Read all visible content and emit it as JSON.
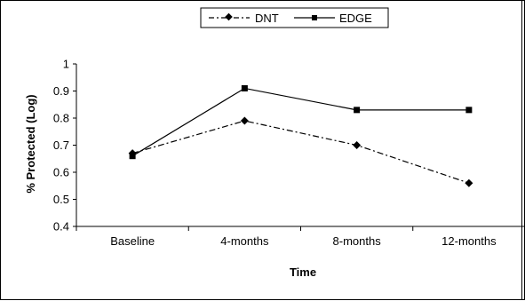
{
  "chart_data": {
    "type": "line",
    "title": "",
    "xlabel": "Time",
    "ylabel": "% Protected (Log)",
    "categories": [
      "Baseline",
      "4-months",
      "8-months",
      "12-months"
    ],
    "ylim": [
      0.4,
      1
    ],
    "yticks": [
      "0.4",
      "0.5",
      "0.6",
      "0.7",
      "0.8",
      "0.9",
      "1"
    ],
    "grid": false,
    "legend_position": "top",
    "series": [
      {
        "name": "DNT",
        "values": [
          0.67,
          0.79,
          0.7,
          0.56
        ],
        "line_style": "dash-dot",
        "marker": "diamond",
        "color": "#000000"
      },
      {
        "name": "EDGE",
        "values": [
          0.66,
          0.91,
          0.83,
          0.83
        ],
        "line_style": "solid",
        "marker": "square",
        "color": "#000000"
      }
    ]
  }
}
